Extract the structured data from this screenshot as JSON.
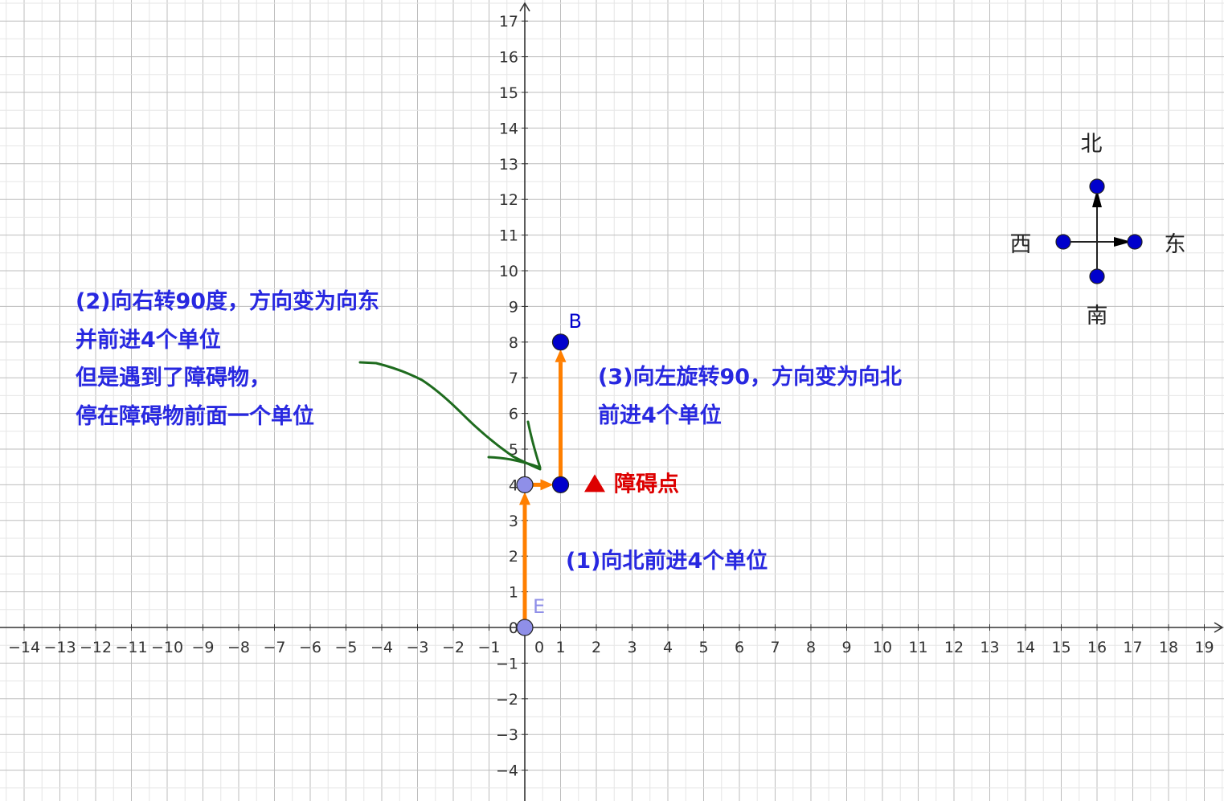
{
  "graph": {
    "x_range": [
      -14,
      19
    ],
    "y_range": [
      -4,
      17
    ],
    "origin_label": "0",
    "grid": true,
    "major_grid_color": "#bdbdbd",
    "minor_grid_color": "#e6e6e6",
    "axis_color": "#333333"
  },
  "points": [
    {
      "id": "E",
      "label": "E",
      "x": 0,
      "y": 0,
      "color": "#8f8fe8"
    },
    {
      "id": "P1",
      "label": "",
      "x": 0,
      "y": 4,
      "color": "#8f8fe8"
    },
    {
      "id": "P2",
      "label": "",
      "x": 1,
      "y": 4,
      "color": "#0000cc"
    },
    {
      "id": "B",
      "label": "B",
      "x": 1,
      "y": 8,
      "color": "#0000cc"
    }
  ],
  "path": {
    "color": "#ff7f00",
    "segments": [
      {
        "from": [
          0,
          0
        ],
        "to": [
          0,
          4
        ]
      },
      {
        "from": [
          0,
          4
        ],
        "to": [
          1,
          4
        ]
      },
      {
        "from": [
          1,
          4
        ],
        "to": [
          1,
          8
        ]
      }
    ]
  },
  "obstacle": {
    "x": 2,
    "y": 4,
    "label": "障碍点",
    "color": "#dd0000"
  },
  "annotations": {
    "step1": "(1)向北前进4个单位",
    "step2_lines": [
      "(2)向右转90度，方向变为向东",
      "并前进4个单位",
      "但是遇到了障碍物，",
      "停在障碍物前面一个单位"
    ],
    "step3_lines": [
      "(3)向左旋转90，方向变为向北",
      "前进4个单位"
    ],
    "text_color": "#2828e0",
    "pointer_color": "#1e6b1e"
  },
  "compass": {
    "center": [
      16,
      11
    ],
    "north": "北",
    "south": "南",
    "east": "东",
    "west": "西",
    "point_color": "#0000cc"
  }
}
